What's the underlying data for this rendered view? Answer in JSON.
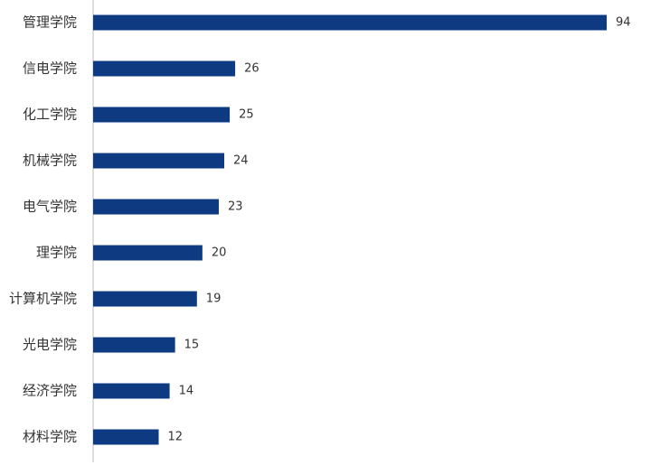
{
  "chart_data": {
    "type": "bar",
    "orientation": "horizontal",
    "categories": [
      "管理学院",
      "信电学院",
      "化工学院",
      "机械学院",
      "电气学院",
      "理学院",
      "计算机学院",
      "光电学院",
      "经济学院",
      "材料学院"
    ],
    "values": [
      94,
      26,
      25,
      24,
      23,
      20,
      19,
      15,
      14,
      12
    ],
    "color": "#0e3a82"
  }
}
